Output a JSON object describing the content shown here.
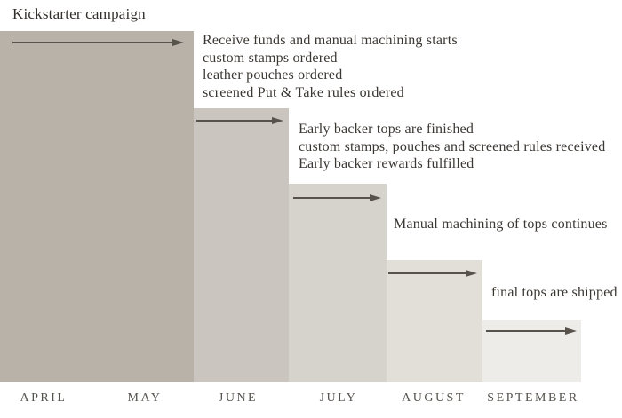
{
  "chart_data": {
    "type": "bar",
    "subtype": "stepped-gantt-timeline",
    "title": "Kickstarter campaign",
    "xlabel": "",
    "ylabel": "",
    "grid": false,
    "legend": false,
    "x_categories": [
      "APRIL",
      "MAY",
      "JUNE",
      "JULY",
      "AUGUST",
      "SEPTEMBER"
    ],
    "series": [
      {
        "months": [
          "APRIL",
          "MAY"
        ],
        "color": "#b9b2a9",
        "notes": [
          "Receive funds and manual machining starts",
          "custom stamps ordered",
          "leather pouches ordered",
          "screened Put & Take rules ordered"
        ]
      },
      {
        "months": [
          "JUNE"
        ],
        "color": "#cbc5bf",
        "notes": [
          "Early backer tops are finished",
          "custom stamps, pouches and screened rules received",
          "Early backer rewards fulfilled"
        ]
      },
      {
        "months": [
          "JULY"
        ],
        "color": "#d6d2cc",
        "notes": [
          "Manual machining of tops continues"
        ]
      },
      {
        "months": [
          "AUGUST"
        ],
        "color": "#e2dfd9",
        "notes": [
          "final tops are shipped"
        ]
      },
      {
        "months": [
          "SEPTEMBER"
        ],
        "color": "#edece8",
        "notes": []
      }
    ]
  },
  "colors": {
    "background": "#ffffff",
    "arrow": "#57524c",
    "note_text": "#3a3631",
    "title_text": "#322f2a",
    "month_label": "#55524d"
  }
}
